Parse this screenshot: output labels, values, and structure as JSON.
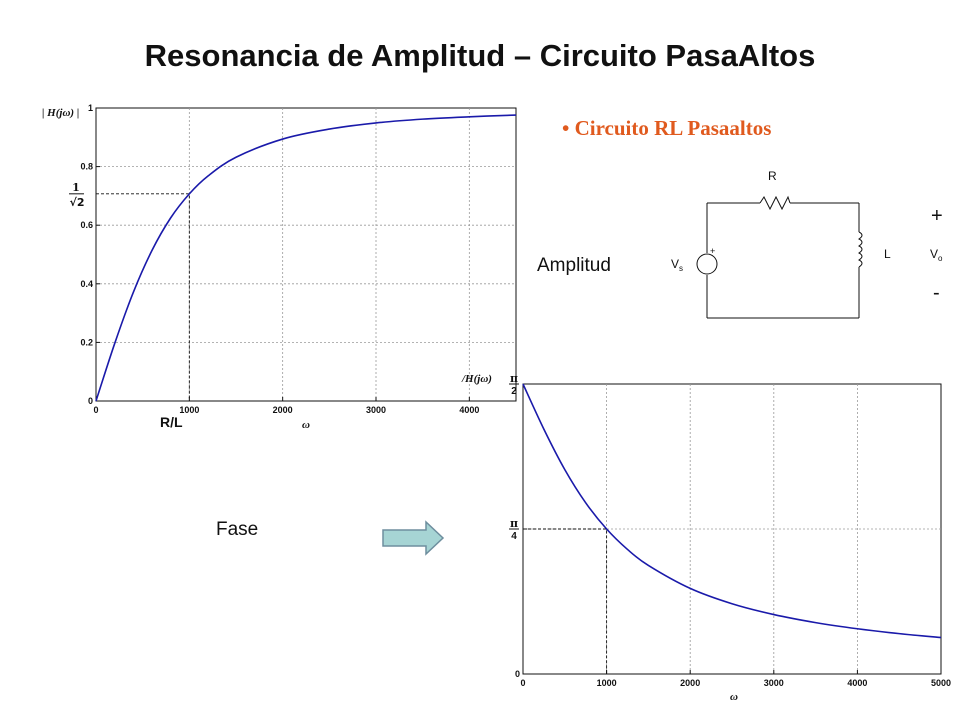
{
  "slide": {
    "title": "Resonancia de Amplitud – Circuito PasaAltos",
    "bullet": "• Circuito RL Pasaaltos",
    "label_amplitud": "Amplitud",
    "label_fase": "Fase",
    "label_rl": "R/L"
  },
  "circuit": {
    "r_label": "R",
    "l_label": "L",
    "vs_label": "V",
    "vs_sub": "s",
    "vo_label": "V",
    "vo_sub": "o",
    "plus": "+",
    "minus": "-",
    "src_plus": "+"
  },
  "colors": {
    "curve": "#1a1aaa",
    "accent": "#e05a1e",
    "arrow": "#a6d4d4",
    "arrow_edge": "#6e8e9e"
  },
  "chart_data": [
    {
      "type": "line",
      "ylabel": "| H(jω) |",
      "xlabel": "ω",
      "xlim": [
        0,
        4500
      ],
      "ylim": [
        0,
        1
      ],
      "x_ticks": [
        0,
        1000,
        2000,
        3000,
        4000
      ],
      "x_tick_labels": [
        "0",
        "1000",
        "2000",
        "3000",
        "4000"
      ],
      "y_ticks": [
        0,
        0.2,
        0.4,
        0.6,
        0.8,
        1
      ],
      "y_tick_labels": [
        "0",
        "0.2",
        "0.4",
        "0.6",
        "0.8",
        "1"
      ],
      "special_y_tick": {
        "value": 0.7071,
        "numerator": "1",
        "denominator": "√2"
      },
      "marker": {
        "x": 1000,
        "y": 0.7071
      },
      "grid": true,
      "series": [
        {
          "x": [
            0,
            200,
            400,
            600,
            800,
            1000,
            1200,
            1500,
            2000,
            2500,
            3000,
            3500,
            4000,
            4500
          ],
          "values": [
            0,
            0.196,
            0.371,
            0.514,
            0.625,
            0.707,
            0.768,
            0.832,
            0.894,
            0.928,
            0.949,
            0.962,
            0.97,
            0.976
          ]
        }
      ]
    },
    {
      "type": "line",
      "ylabel": "/H(jω)",
      "xlabel": "ω",
      "xlim": [
        0,
        5000
      ],
      "ylim": [
        0,
        1.5708
      ],
      "x_ticks": [
        0,
        1000,
        2000,
        3000,
        4000,
        5000
      ],
      "x_tick_labels": [
        "0",
        "1000",
        "2000",
        "3000",
        "4000",
        "5000"
      ],
      "y_ticks": [
        0,
        0.7854,
        1.5708
      ],
      "y_tick_labels": [
        "0",
        "π/4",
        "π/2"
      ],
      "marker": {
        "x": 1000,
        "y": 0.7854
      },
      "grid": true,
      "series": [
        {
          "x": [
            0,
            250,
            500,
            750,
            1000,
            1250,
            1500,
            2000,
            2500,
            3000,
            3500,
            4000,
            4500,
            5000
          ],
          "values": [
            1.5708,
            1.3258,
            1.1071,
            0.9273,
            0.7854,
            0.6747,
            0.588,
            0.4636,
            0.3805,
            0.3218,
            0.2783,
            0.245,
            0.2187,
            0.1974
          ]
        }
      ]
    }
  ]
}
